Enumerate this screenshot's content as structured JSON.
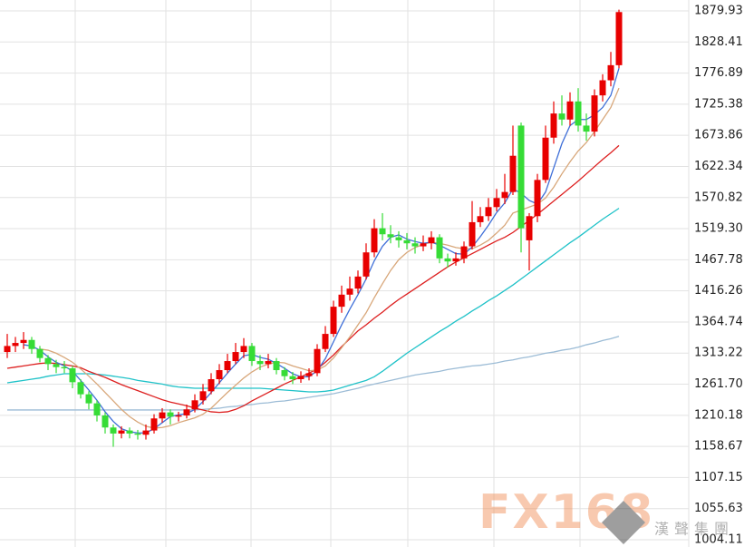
{
  "chart_data": {
    "type": "candlestick",
    "ylim": [
      992.09,
      1897.96
    ],
    "yticks": [
      1004.11,
      1055.63,
      1107.15,
      1158.67,
      1210.18,
      {
        "value": 1261.7,
        "label": "1261.70"
      },
      1313.22,
      1364.74,
      1416.26,
      1467.78,
      {
        "value": 1519.3,
        "label": "1519.30"
      },
      1570.82,
      1622.34,
      1673.86,
      1725.38,
      1776.89,
      1828.41,
      1879.93
    ],
    "grid": true,
    "up_color": "#e80000",
    "down_color": "#36dc36",
    "open": [
      1315,
      1325,
      1330,
      1335,
      1320,
      1305,
      1295,
      1290,
      1288,
      1265,
      1245,
      1230,
      1210,
      1190,
      1180,
      1185,
      1180,
      1178,
      1185,
      1205,
      1215,
      1208,
      1210,
      1220,
      1235,
      1250,
      1270,
      1285,
      1300,
      1315,
      1325,
      1300,
      1295,
      1300,
      1285,
      1275,
      1270,
      1275,
      1280,
      1320,
      1345,
      1390,
      1410,
      1420,
      1440,
      1480,
      1520,
      1510,
      1505,
      1500,
      1495,
      1490,
      1495,
      1505,
      1470,
      1465,
      1470,
      1490,
      1530,
      1540,
      1555,
      1570,
      1580,
      1690,
      1500,
      1540,
      1600,
      1670,
      1710,
      1700,
      1730,
      1690,
      1680,
      1740,
      1765,
      1790
    ],
    "high": [
      1345,
      1340,
      1348,
      1340,
      1325,
      1310,
      1302,
      1300,
      1292,
      1270,
      1250,
      1235,
      1215,
      1195,
      1192,
      1190,
      1186,
      1195,
      1212,
      1222,
      1220,
      1216,
      1228,
      1245,
      1262,
      1280,
      1295,
      1312,
      1330,
      1338,
      1330,
      1310,
      1312,
      1305,
      1290,
      1282,
      1283,
      1288,
      1328,
      1358,
      1400,
      1425,
      1440,
      1450,
      1495,
      1535,
      1545,
      1525,
      1515,
      1512,
      1505,
      1508,
      1515,
      1510,
      1478,
      1480,
      1498,
      1565,
      1555,
      1570,
      1585,
      1610,
      1690,
      1695,
      1545,
      1610,
      1690,
      1730,
      1740,
      1745,
      1752,
      1710,
      1750,
      1775,
      1812,
      1882
    ],
    "low": [
      1305,
      1315,
      1320,
      1312,
      1298,
      1285,
      1280,
      1280,
      1255,
      1238,
      1220,
      1200,
      1180,
      1158,
      1172,
      1172,
      1170,
      1170,
      1180,
      1198,
      1195,
      1200,
      1205,
      1215,
      1228,
      1245,
      1262,
      1280,
      1295,
      1305,
      1292,
      1285,
      1288,
      1278,
      1268,
      1262,
      1264,
      1268,
      1275,
      1315,
      1340,
      1380,
      1400,
      1412,
      1435,
      1472,
      1500,
      1495,
      1488,
      1485,
      1478,
      1482,
      1485,
      1462,
      1455,
      1458,
      1462,
      1485,
      1522,
      1532,
      1548,
      1560,
      1575,
      1480,
      1450,
      1530,
      1595,
      1660,
      1690,
      1690,
      1680,
      1665,
      1672,
      1730,
      1755,
      1785
    ],
    "close": [
      1325,
      1330,
      1335,
      1320,
      1305,
      1295,
      1290,
      1288,
      1265,
      1245,
      1230,
      1210,
      1190,
      1180,
      1185,
      1180,
      1178,
      1185,
      1205,
      1215,
      1208,
      1210,
      1220,
      1235,
      1250,
      1270,
      1285,
      1300,
      1315,
      1325,
      1300,
      1295,
      1300,
      1285,
      1275,
      1270,
      1275,
      1280,
      1320,
      1345,
      1390,
      1410,
      1420,
      1440,
      1480,
      1520,
      1510,
      1505,
      1500,
      1495,
      1490,
      1495,
      1505,
      1470,
      1465,
      1470,
      1490,
      1530,
      1540,
      1555,
      1570,
      1580,
      1640,
      1520,
      1540,
      1600,
      1670,
      1710,
      1700,
      1730,
      1690,
      1680,
      1740,
      1765,
      1790,
      1878
    ],
    "series": [
      {
        "color": "#9cbcd6",
        "values": [
          1219,
          1219,
          1219,
          1219,
          1219,
          1219,
          1219,
          1219,
          1219,
          1219,
          1219,
          1219,
          1219,
          1219,
          1219,
          1219,
          1219,
          1219,
          1219,
          1219,
          1219,
          1219,
          1219,
          1219,
          1220,
          1221,
          1222,
          1224,
          1225,
          1227,
          1228,
          1230,
          1231,
          1233,
          1234,
          1236,
          1238,
          1240,
          1242,
          1244,
          1246,
          1249,
          1252,
          1255,
          1259,
          1262,
          1265,
          1268,
          1271,
          1274,
          1277,
          1279,
          1281,
          1283,
          1286,
          1288,
          1290,
          1292,
          1293,
          1295,
          1297,
          1300,
          1302,
          1305,
          1307,
          1310,
          1313,
          1315,
          1318,
          1320,
          1323,
          1327,
          1330,
          1334,
          1337,
          1341
        ]
      },
      {
        "color": "#1fc2c8",
        "values": [
          1264,
          1266,
          1268,
          1270,
          1272,
          1275,
          1277,
          1279,
          1279,
          1279,
          1279,
          1278,
          1277,
          1275,
          1273,
          1271,
          1268,
          1266,
          1264,
          1262,
          1259,
          1257,
          1256,
          1255,
          1255,
          1255,
          1255,
          1255,
          1255,
          1255,
          1255,
          1255,
          1254,
          1253,
          1252,
          1251,
          1250,
          1249,
          1249,
          1250,
          1252,
          1256,
          1260,
          1264,
          1268,
          1274,
          1283,
          1293,
          1303,
          1313,
          1322,
          1331,
          1340,
          1349,
          1357,
          1366,
          1374,
          1383,
          1391,
          1400,
          1408,
          1417,
          1426,
          1436,
          1446,
          1456,
          1466,
          1476,
          1486,
          1496,
          1505,
          1515,
          1525,
          1535,
          1544,
          1553
        ]
      },
      {
        "color": "#dd1f1f",
        "values": [
          1288,
          1290,
          1292,
          1294,
          1296,
          1297,
          1296,
          1294,
          1292,
          1289,
          1283,
          1278,
          1273,
          1267,
          1261,
          1256,
          1251,
          1246,
          1241,
          1236,
          1232,
          1229,
          1226,
          1222,
          1219,
          1216,
          1215,
          1216,
          1220,
          1226,
          1234,
          1241,
          1248,
          1255,
          1262,
          1268,
          1274,
          1280,
          1287,
          1298,
          1310,
          1324,
          1337,
          1350,
          1360,
          1371,
          1381,
          1392,
          1402,
          1411,
          1420,
          1429,
          1438,
          1447,
          1456,
          1464,
          1471,
          1478,
          1485,
          1492,
          1499,
          1505,
          1513,
          1523,
          1533,
          1543,
          1554,
          1565,
          1576,
          1587,
          1598,
          1610,
          1622,
          1634,
          1645,
          1657
        ]
      },
      {
        "color": "#d8a77a",
        "values": [
          null,
          null,
          null,
          null,
          1320,
          1318,
          1313,
          1306,
          1298,
          1287,
          1275,
          1262,
          1248,
          1234,
          1220,
          1208,
          1199,
          1192,
          1189,
          1190,
          1193,
          1198,
          1202,
          1206,
          1212,
          1222,
          1235,
          1248,
          1260,
          1272,
          1282,
          1290,
          1295,
          1298,
          1297,
          1292,
          1288,
          1284,
          1285,
          1292,
          1305,
          1322,
          1340,
          1360,
          1380,
          1405,
          1428,
          1450,
          1468,
          1480,
          1488,
          1493,
          1497,
          1495,
          1492,
          1488,
          1486,
          1486,
          1492,
          1500,
          1512,
          1525,
          1545,
          1550,
          1555,
          1560,
          1570,
          1588,
          1610,
          1630,
          1648,
          1662,
          1680,
          1700,
          1720,
          1752
        ]
      },
      {
        "color": "#3f6fd8",
        "values": [
          null,
          null,
          1327,
          1325,
          1318,
          1307,
          1298,
          1292,
          1283,
          1268,
          1252,
          1235,
          1216,
          1200,
          1188,
          1183,
          1181,
          1181,
          1188,
          1198,
          1208,
          1211,
          1213,
          1220,
          1233,
          1248,
          1264,
          1280,
          1295,
          1309,
          1311,
          1306,
          1303,
          1296,
          1288,
          1279,
          1274,
          1274,
          1284,
          1304,
          1332,
          1360,
          1386,
          1410,
          1436,
          1466,
          1490,
          1505,
          1509,
          1502,
          1498,
          1495,
          1497,
          1492,
          1485,
          1478,
          1477,
          1489,
          1506,
          1525,
          1546,
          1562,
          1585,
          1578,
          1566,
          1560,
          1580,
          1620,
          1660,
          1690,
          1700,
          1700,
          1708,
          1720,
          1740,
          1785
        ]
      }
    ],
    "watermark": {
      "brand": "FX168",
      "company": "漢聲集團"
    }
  }
}
